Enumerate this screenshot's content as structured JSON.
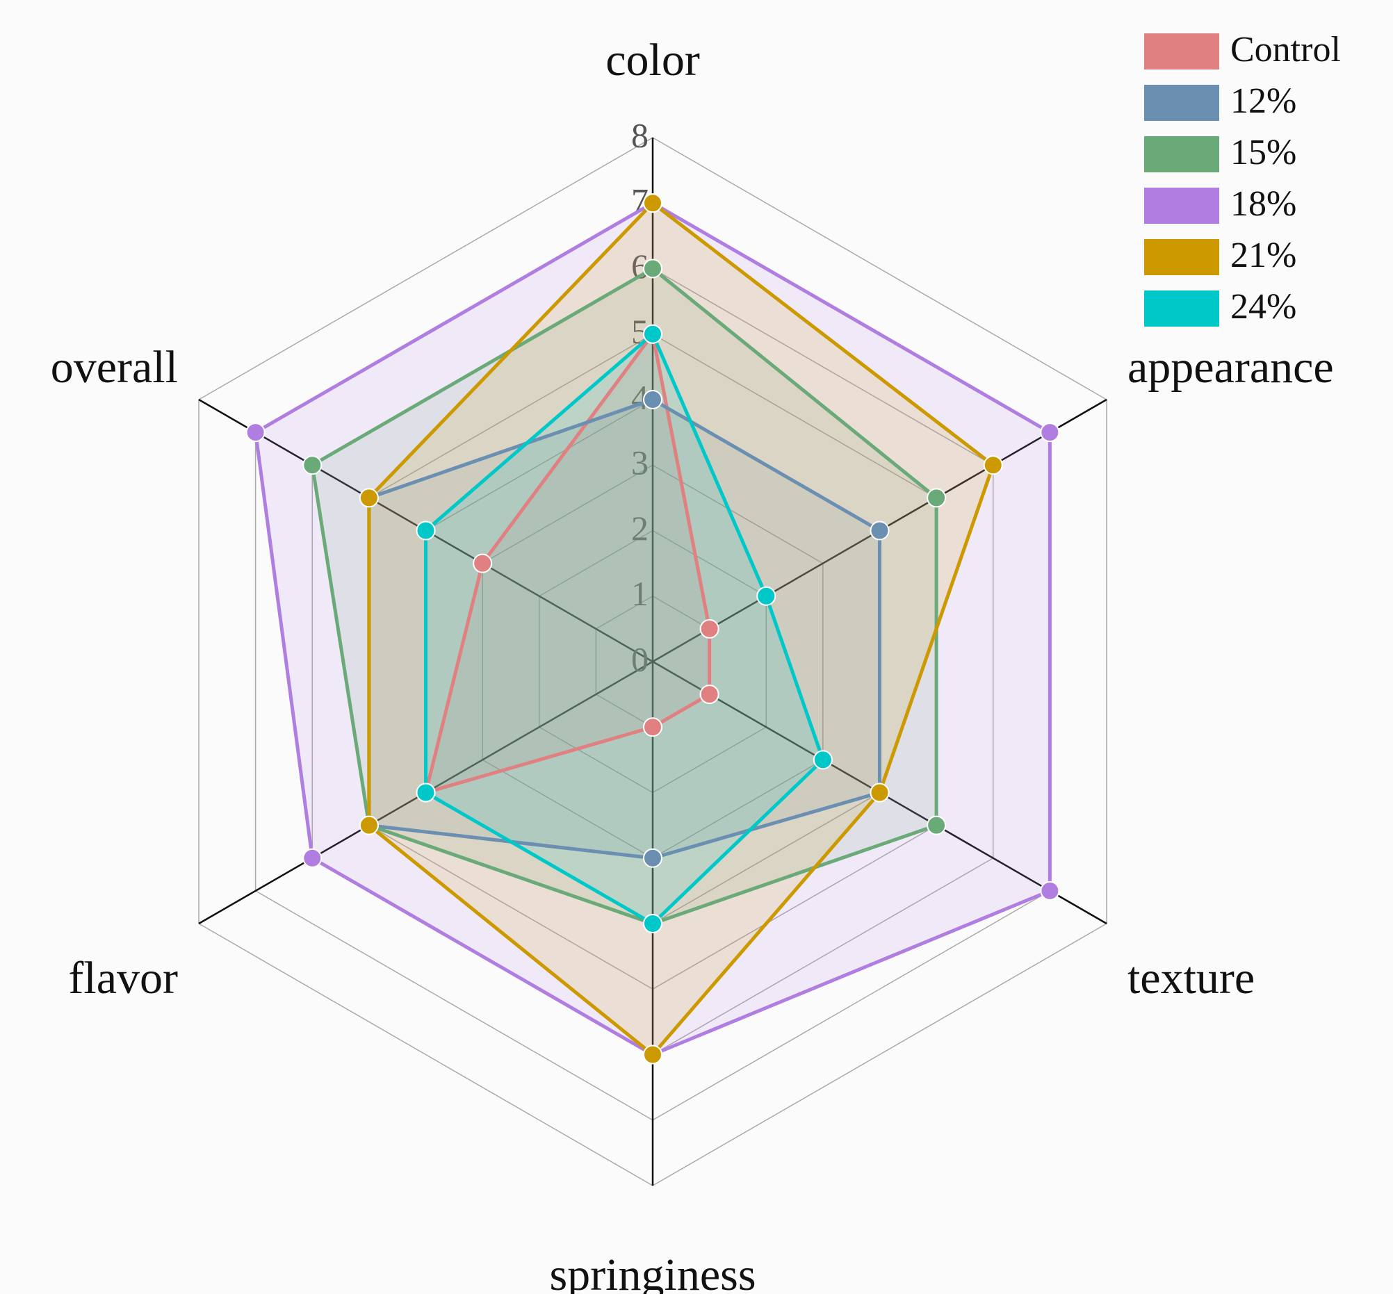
{
  "chart_data": {
    "type": "radar",
    "categories": [
      "color",
      "appearance",
      "texture",
      "springiness",
      "flavor",
      "overall"
    ],
    "rlim": [
      0,
      8
    ],
    "rticks": [
      0,
      1,
      2,
      3,
      4,
      5,
      6,
      7,
      8
    ],
    "grid": true,
    "legend": "upper right",
    "series": [
      {
        "name": "Control",
        "color": "#e08080",
        "values": [
          5,
          1,
          1,
          1,
          4,
          3
        ]
      },
      {
        "name": "12%",
        "color": "#6a8fb0",
        "values": [
          4,
          4,
          4,
          3,
          5,
          5
        ]
      },
      {
        "name": "15%",
        "color": "#6aaa78",
        "values": [
          6,
          5,
          5,
          4,
          5,
          6
        ]
      },
      {
        "name": "18%",
        "color": "#b07ee0",
        "values": [
          7,
          7,
          7,
          6,
          6,
          7
        ]
      },
      {
        "name": "21%",
        "color": "#cc9900",
        "values": [
          7,
          6,
          4,
          6,
          5,
          5
        ]
      },
      {
        "name": "24%",
        "color": "#00c8c8",
        "values": [
          5,
          2,
          3,
          4,
          4,
          4
        ]
      }
    ]
  }
}
